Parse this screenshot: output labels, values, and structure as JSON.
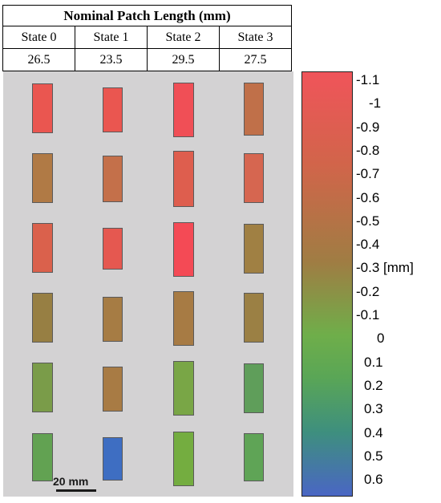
{
  "table": {
    "title": "Nominal Patch Length (mm)",
    "states": [
      "State 0",
      "State 1",
      "State 2",
      "State 3"
    ],
    "lengths": [
      "26.5",
      "23.5",
      "29.5",
      "27.5"
    ]
  },
  "scale_bar_label": "20 mm",
  "colorbar": {
    "unit": "[mm]",
    "tick_labels": [
      "-1.1",
      "-1",
      "-0.9",
      "-0.8",
      "-0.7",
      "-0.6",
      "-0.5",
      "-0.4",
      "-0.3",
      "-0.2",
      "-0.1",
      "0",
      "0.1",
      "0.2",
      "0.3",
      "0.4",
      "0.5",
      "0.6"
    ],
    "colors": {
      "top": "#f0545a",
      "upper_mid": "#d1654a",
      "mid": "#9f7d43",
      "lower_mid": "#6fae4a",
      "green": "#5aa656",
      "teal": "#3e8f7e",
      "bottom": "#4a66c4"
    }
  },
  "patch_colors": [
    [
      "#ea5650",
      "#ea5650",
      "#f04f56",
      "#c07049"
    ],
    [
      "#b07a45",
      "#c4704a",
      "#de5e4e",
      "#d66650"
    ],
    [
      "#da614c",
      "#e55850",
      "#f44a55",
      "#a08043"
    ],
    [
      "#977f43",
      "#a67c44",
      "#a77b44",
      "#9b8044"
    ],
    [
      "#7a9c49",
      "#a87b44",
      "#79a646",
      "#5f9e5a"
    ],
    [
      "#62a252",
      "#3e6ec2",
      "#74ad40",
      "#5fa456"
    ]
  ]
}
